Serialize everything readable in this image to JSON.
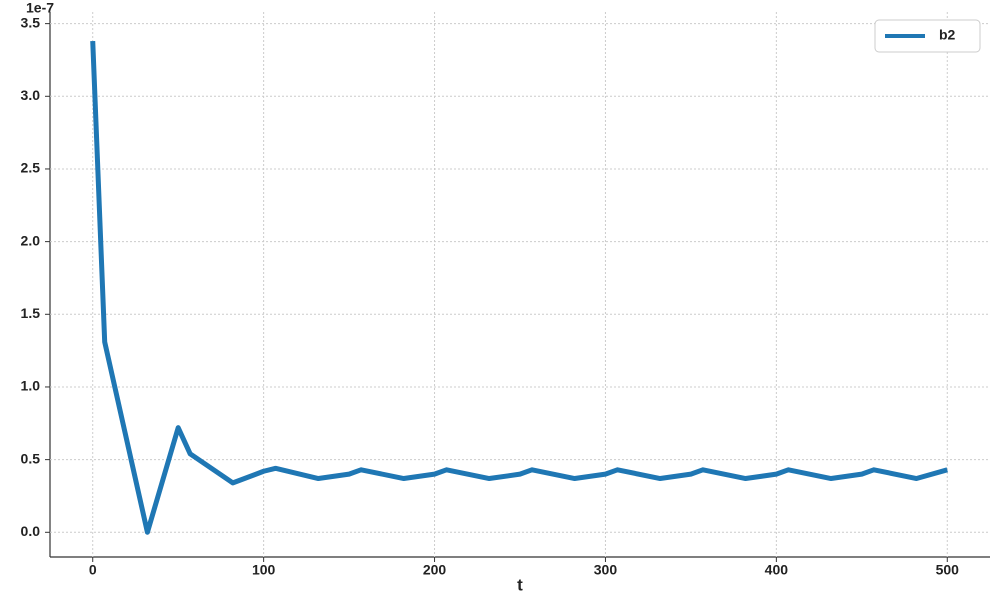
{
  "chart_data": {
    "type": "line",
    "xlabel": "t",
    "y_offset_label": "1e-7",
    "x": [
      0,
      7,
      32,
      50,
      57,
      82,
      100,
      107,
      132,
      150,
      157,
      182,
      200,
      207,
      232,
      250,
      257,
      282,
      300,
      307,
      332,
      350,
      357,
      382,
      400,
      407,
      432,
      450,
      457,
      482,
      500
    ],
    "series": [
      {
        "name": "b2",
        "color": "#1f77b4",
        "values": [
          3.38,
          1.31,
          0.0,
          0.72,
          0.54,
          0.34,
          0.42,
          0.44,
          0.37,
          0.4,
          0.43,
          0.37,
          0.4,
          0.43,
          0.37,
          0.4,
          0.43,
          0.37,
          0.4,
          0.43,
          0.37,
          0.4,
          0.43,
          0.37,
          0.4,
          0.43,
          0.37,
          0.4,
          0.43,
          0.37,
          0.43
        ]
      }
    ],
    "xlim": [
      -25,
      525
    ],
    "ylim": [
      -0.17,
      3.58
    ],
    "xticks": [
      0,
      100,
      200,
      300,
      400,
      500
    ],
    "yticks": [
      {
        "value": 0,
        "label": "0.0"
      },
      0.5,
      {
        "value": 1,
        "label": "1.0"
      },
      1.5,
      {
        "value": 2,
        "label": "2.0"
      },
      2.5,
      {
        "value": 3,
        "label": "3.0"
      },
      3.5
    ],
    "grid": true,
    "legend": "upper right"
  }
}
